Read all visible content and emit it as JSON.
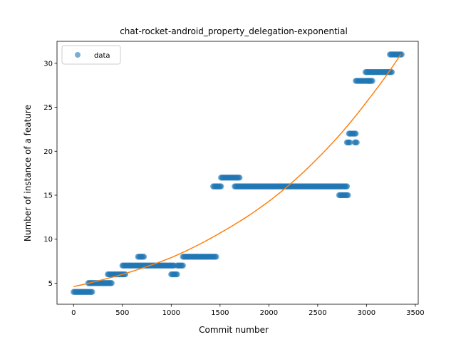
{
  "chart_data": {
    "type": "scatter",
    "title": "chat-rocket-android_property_delegation-exponential",
    "xlabel": "Commit number",
    "ylabel": "Number of instance of a feature",
    "xlim": [
      -170,
      3530
    ],
    "ylim": [
      2.6,
      32.5
    ],
    "xticks": [
      0,
      500,
      1000,
      1500,
      2000,
      2500,
      3000,
      3500
    ],
    "yticks": [
      5,
      10,
      15,
      20,
      25,
      30
    ],
    "grid": false,
    "legend": {
      "placement": "top-left",
      "entries": [
        "data"
      ]
    },
    "colors": {
      "data": "#1f77b4",
      "fit": "#ff7f0e"
    },
    "series": [
      {
        "name": "data",
        "kind": "scatter",
        "segments": [
          {
            "x": [
              0,
              190
            ],
            "y": 4
          },
          {
            "x": [
              150,
              390
            ],
            "y": 5
          },
          {
            "x": [
              350,
              530
            ],
            "y": 6
          },
          {
            "x": [
              500,
              1030
            ],
            "y": 7
          },
          {
            "x": [
              660,
              720
            ],
            "y": 8
          },
          {
            "x": [
              1000,
              1060
            ],
            "y": 6
          },
          {
            "x": [
              1060,
              1120
            ],
            "y": 7
          },
          {
            "x": [
              1120,
              1460
            ],
            "y": 8
          },
          {
            "x": [
              1430,
              1510
            ],
            "y": 16
          },
          {
            "x": [
              1510,
              1700
            ],
            "y": 17
          },
          {
            "x": [
              1650,
              2800
            ],
            "y": 16
          },
          {
            "x": [
              2720,
              2810
            ],
            "y": 15
          },
          {
            "x": [
              2800,
              2830
            ],
            "y": 21
          },
          {
            "x": [
              2820,
              2890
            ],
            "y": 22
          },
          {
            "x": [
              2880,
              2900
            ],
            "y": 21
          },
          {
            "x": [
              2890,
              3030
            ],
            "y": 28
          },
          {
            "x": [
              2990,
              3260
            ],
            "y": 29
          },
          {
            "x": [
              3020,
              3060
            ],
            "y": 28
          },
          {
            "x": [
              3240,
              3360
            ],
            "y": 31
          }
        ]
      },
      {
        "kind": "line",
        "model": "exponential",
        "x": [
          0,
          500,
          1000,
          1500,
          2000,
          2500,
          3000,
          3350
        ],
        "y": [
          4.6,
          6.0,
          7.9,
          10.7,
          14.3,
          19.2,
          25.6,
          31.0
        ]
      }
    ]
  }
}
